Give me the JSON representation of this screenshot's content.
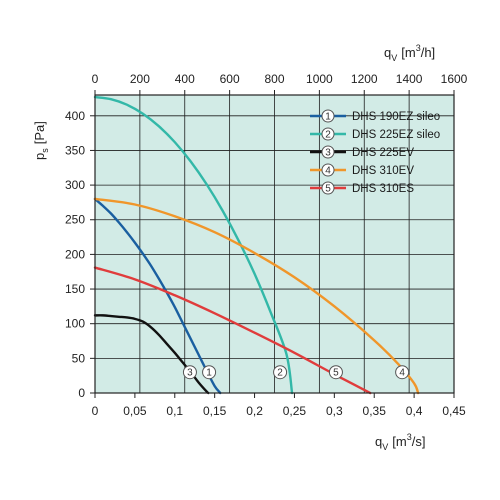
{
  "chart_data": {
    "type": "line",
    "bottom_axis": {
      "label_main": "q",
      "label_sub": "V",
      "label_unit_pre": "[m",
      "label_unit_sup": "3",
      "label_unit_post": "/s]",
      "range": [
        0,
        0.45
      ],
      "ticks": [
        0,
        0.05,
        0.1,
        0.15,
        0.2,
        0.25,
        0.3,
        0.35,
        0.4,
        0.45
      ],
      "tick_labels": [
        "0",
        "0,05",
        "0,1",
        "0,15",
        "0,2",
        "0,25",
        "0,3",
        "0,35",
        "0,4",
        "0,45"
      ]
    },
    "top_axis": {
      "label_main": "q",
      "label_sub": "V",
      "label_unit_pre": "[m",
      "label_unit_sup": "3",
      "label_unit_post": "/h]",
      "range": [
        0,
        1600
      ],
      "ticks": [
        0,
        200,
        400,
        600,
        800,
        1000,
        1200,
        1400,
        1600
      ],
      "tick_labels": [
        "0",
        "200",
        "400",
        "600",
        "800",
        "1000",
        "1200",
        "1400",
        "1600"
      ]
    },
    "left_axis": {
      "label_main": "p",
      "label_sub": "s",
      "label_unit": "[Pa]",
      "range": [
        0,
        430
      ],
      "ticks": [
        0,
        50,
        100,
        150,
        200,
        250,
        300,
        350,
        400
      ],
      "tick_labels": [
        "0",
        "50",
        "100",
        "150",
        "200",
        "250",
        "300",
        "350",
        "400"
      ]
    },
    "grid": true,
    "background_color": "#d2ebe6",
    "legend_position": "top-right",
    "series": [
      {
        "marker": "1",
        "name": "DHS 190EZ sileo",
        "color": "#1a5fa0",
        "x": [
          0,
          0.01,
          0.02,
          0.03,
          0.04,
          0.05,
          0.06,
          0.07,
          0.08,
          0.09,
          0.1,
          0.11,
          0.12,
          0.13,
          0.14,
          0.15,
          0.157
        ],
        "y": [
          280,
          270,
          259,
          246,
          232,
          217,
          201,
          184,
          165,
          145,
          124,
          101,
          78,
          55,
          32,
          10,
          0
        ],
        "marker_pos": [
          0.143,
          30
        ]
      },
      {
        "marker": "2",
        "name": "DHS 225EZ sileo",
        "color": "#33b8a8",
        "x": [
          0,
          0.02,
          0.04,
          0.06,
          0.08,
          0.1,
          0.12,
          0.14,
          0.16,
          0.18,
          0.2,
          0.22,
          0.24,
          0.247
        ],
        "y": [
          427,
          424,
          416,
          403,
          385,
          362,
          334,
          301,
          263,
          220,
          172,
          117,
          56,
          0
        ],
        "marker_pos": [
          0.232,
          30
        ]
      },
      {
        "marker": "3",
        "name": "DHS 225EV",
        "color": "#111111",
        "x": [
          0,
          0.01,
          0.02,
          0.03,
          0.04,
          0.05,
          0.06,
          0.07,
          0.08,
          0.09,
          0.1,
          0.11,
          0.12,
          0.13,
          0.14,
          0.142
        ],
        "y": [
          112,
          112,
          111,
          110,
          109,
          107,
          103,
          95,
          84,
          71,
          58,
          44,
          30,
          15,
          2,
          0
        ],
        "marker_pos": [
          0.119,
          30
        ]
      },
      {
        "marker": "4",
        "name": "DHS 310EV",
        "color": "#f0962a",
        "x": [
          0,
          0.05,
          0.1,
          0.15,
          0.2,
          0.25,
          0.3,
          0.35,
          0.38,
          0.4,
          0.405
        ],
        "y": [
          280,
          272,
          255,
          232,
          202,
          167,
          125,
          76,
          42,
          14,
          0
        ],
        "marker_pos": [
          0.385,
          30
        ]
      },
      {
        "marker": "5",
        "name": "DHS 310ES",
        "color": "#e03c3c",
        "x": [
          0,
          0.05,
          0.1,
          0.15,
          0.2,
          0.25,
          0.3,
          0.34,
          0.345
        ],
        "y": [
          181,
          164,
          141,
          115,
          87,
          58,
          27,
          3,
          0
        ],
        "marker_pos": [
          0.302,
          30
        ]
      }
    ]
  }
}
